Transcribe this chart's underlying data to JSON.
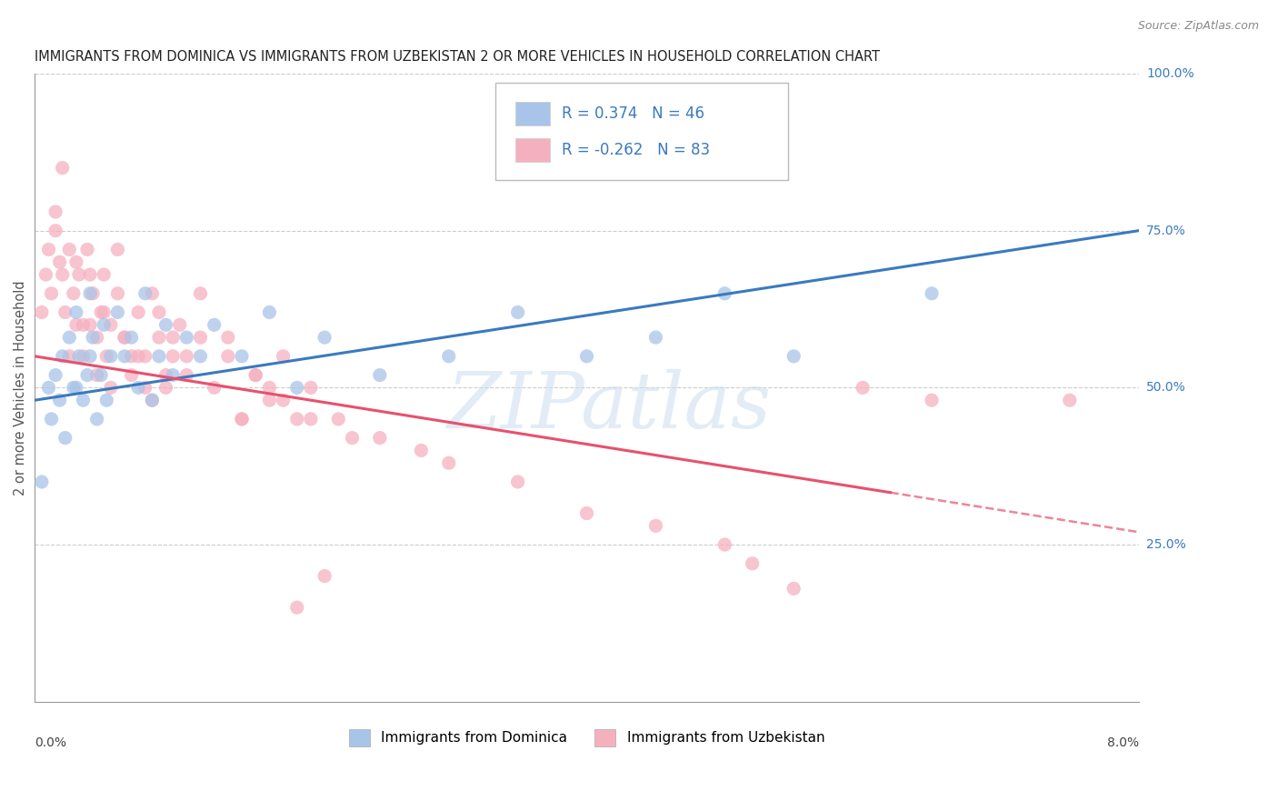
{
  "title": "IMMIGRANTS FROM DOMINICA VS IMMIGRANTS FROM UZBEKISTAN 2 OR MORE VEHICLES IN HOUSEHOLD CORRELATION CHART",
  "source": "Source: ZipAtlas.com",
  "xmin": 0.0,
  "xmax": 8.0,
  "ymin": 0.0,
  "ymax": 100.0,
  "dominica_R": 0.374,
  "dominica_N": 46,
  "uzbekistan_R": -0.262,
  "uzbekistan_N": 83,
  "dominica_color": "#a8c4e8",
  "uzbekistan_color": "#f5b0c0",
  "dominica_line_color": "#3a7abf",
  "uzbekistan_line_color": "#e8506e",
  "watermark_text": "ZIPatlas",
  "dominica_trend_y0": 48.0,
  "dominica_trend_y1": 75.0,
  "uzbekistan_trend_y0": 55.0,
  "uzbekistan_trend_y1": 27.0,
  "uzbekistan_dash_start_x": 6.2,
  "dominica_x": [
    0.05,
    0.1,
    0.12,
    0.15,
    0.18,
    0.2,
    0.22,
    0.25,
    0.28,
    0.3,
    0.32,
    0.35,
    0.38,
    0.4,
    0.42,
    0.45,
    0.48,
    0.5,
    0.52,
    0.55,
    0.6,
    0.65,
    0.7,
    0.75,
    0.8,
    0.85,
    0.9,
    0.95,
    1.0,
    1.1,
    1.2,
    1.3,
    1.5,
    1.7,
    1.9,
    2.1,
    2.5,
    3.0,
    3.5,
    4.0,
    4.5,
    5.0,
    5.5,
    6.5,
    0.3,
    0.4
  ],
  "dominica_y": [
    35,
    50,
    45,
    52,
    48,
    55,
    42,
    58,
    50,
    62,
    55,
    48,
    52,
    65,
    58,
    45,
    52,
    60,
    48,
    55,
    62,
    55,
    58,
    50,
    65,
    48,
    55,
    60,
    52,
    58,
    55,
    60,
    55,
    62,
    50,
    58,
    52,
    55,
    62,
    55,
    58,
    65,
    55,
    65,
    50,
    55
  ],
  "uzbekistan_x": [
    0.05,
    0.08,
    0.1,
    0.12,
    0.15,
    0.18,
    0.2,
    0.22,
    0.25,
    0.28,
    0.3,
    0.32,
    0.35,
    0.38,
    0.4,
    0.42,
    0.45,
    0.48,
    0.5,
    0.52,
    0.55,
    0.6,
    0.65,
    0.7,
    0.75,
    0.8,
    0.85,
    0.9,
    0.95,
    1.0,
    1.05,
    1.1,
    1.2,
    1.3,
    1.4,
    1.5,
    1.6,
    1.7,
    1.8,
    1.9,
    2.0,
    2.2,
    2.5,
    2.8,
    3.0,
    3.5,
    4.0,
    4.5,
    5.0,
    5.2,
    5.5,
    6.0,
    6.5,
    0.15,
    0.2,
    0.3,
    0.4,
    0.5,
    0.6,
    0.7,
    0.8,
    0.9,
    1.0,
    1.1,
    1.2,
    1.4,
    1.6,
    1.8,
    2.0,
    2.3,
    0.25,
    0.35,
    0.45,
    0.55,
    0.65,
    0.75,
    0.85,
    0.95,
    1.5,
    1.7,
    7.5,
    1.9,
    2.1
  ],
  "uzbekistan_y": [
    62,
    68,
    72,
    65,
    75,
    70,
    68,
    62,
    72,
    65,
    60,
    68,
    55,
    72,
    60,
    65,
    58,
    62,
    68,
    55,
    60,
    65,
    58,
    52,
    62,
    55,
    65,
    58,
    50,
    55,
    60,
    52,
    58,
    50,
    55,
    45,
    52,
    48,
    55,
    45,
    50,
    45,
    42,
    40,
    38,
    35,
    30,
    28,
    25,
    22,
    18,
    50,
    48,
    78,
    85,
    70,
    68,
    62,
    72,
    55,
    50,
    62,
    58,
    55,
    65,
    58,
    52,
    48,
    45,
    42,
    55,
    60,
    52,
    50,
    58,
    55,
    48,
    52,
    45,
    50,
    48,
    15,
    20
  ]
}
